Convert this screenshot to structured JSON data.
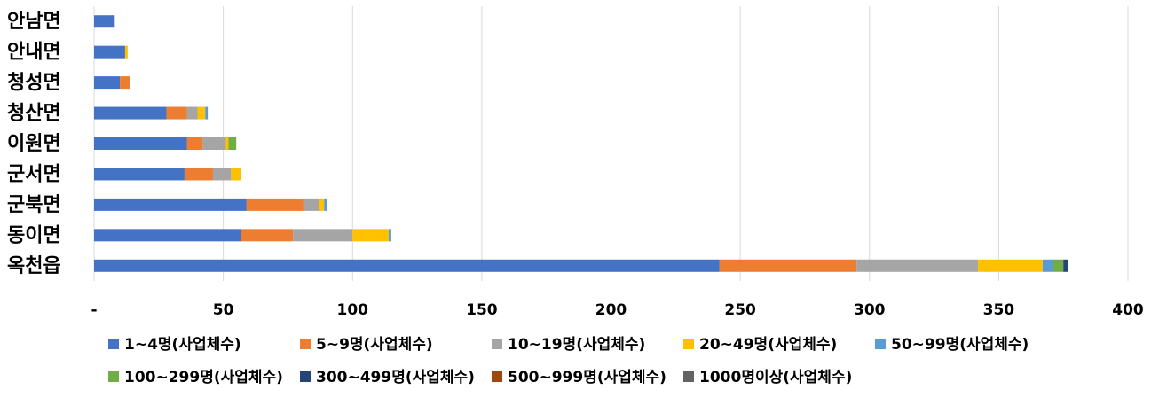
{
  "chart_data": {
    "type": "stacked-bar-horizontal",
    "categories": [
      "안남면",
      "안내면",
      "청성면",
      "청산면",
      "이원면",
      "군서면",
      "군북면",
      "동이면",
      "옥천읍"
    ],
    "series": [
      {
        "name": "1~4명(사업체수)",
        "color": "#4472c4",
        "values": [
          8,
          12,
          10,
          28,
          36,
          35,
          59,
          57,
          242
        ]
      },
      {
        "name": "5~9명(사업체수)",
        "color": "#ed7d31",
        "values": [
          0,
          0,
          4,
          8,
          6,
          11,
          22,
          20,
          53
        ]
      },
      {
        "name": "10~19명(사업체수)",
        "color": "#a5a5a5",
        "values": [
          0,
          0,
          0,
          4,
          9,
          7,
          6,
          23,
          47
        ]
      },
      {
        "name": "20~49명(사업체수)",
        "color": "#ffc000",
        "values": [
          0,
          1,
          0,
          3,
          1,
          4,
          2,
          14,
          25
        ]
      },
      {
        "name": "50~99명(사업체수)",
        "color": "#5b9bd5",
        "values": [
          0,
          0,
          0,
          1,
          0,
          0,
          1,
          1,
          4
        ]
      },
      {
        "name": "100~299명(사업체수)",
        "color": "#70ad47",
        "values": [
          0,
          0,
          0,
          0,
          3,
          0,
          0,
          0,
          4
        ]
      },
      {
        "name": "300~499명(사업체수)",
        "color": "#264478",
        "values": [
          0,
          0,
          0,
          0,
          0,
          0,
          0,
          0,
          2
        ]
      },
      {
        "name": "500~999명(사업체수)",
        "color": "#9e480e",
        "values": [
          0,
          0,
          0,
          0,
          0,
          0,
          0,
          0,
          0
        ]
      },
      {
        "name": "1000명이상(사업체수)",
        "color": "#636363",
        "values": [
          0,
          0,
          0,
          0,
          0,
          0,
          0,
          0,
          0
        ]
      }
    ],
    "xlim": [
      0,
      400
    ],
    "xticks": [
      {
        "value": 0,
        "label": "-"
      },
      50,
      100,
      150,
      200,
      250,
      300,
      350,
      400
    ],
    "grid": true
  }
}
